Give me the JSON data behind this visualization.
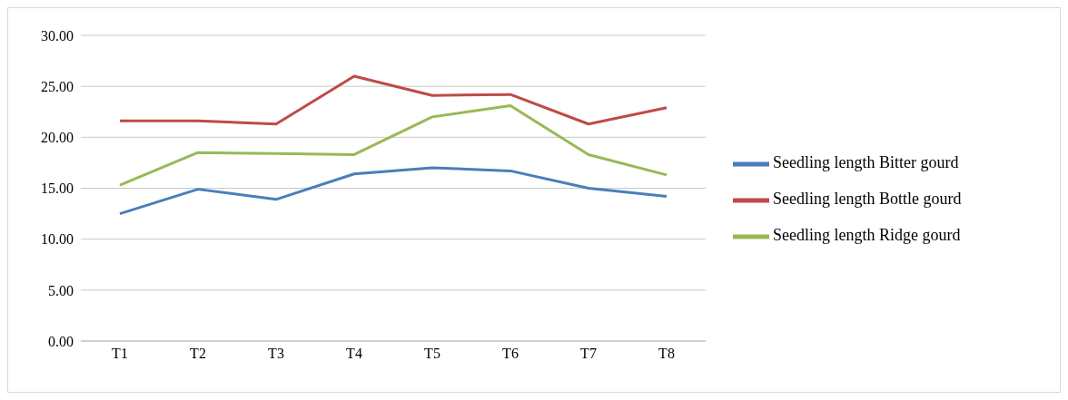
{
  "chart_data": {
    "type": "line",
    "categories": [
      "T1",
      "T2",
      "T3",
      "T4",
      "T5",
      "T6",
      "T7",
      "T8"
    ],
    "series": [
      {
        "name": "Seedling length Bitter gourd",
        "color": "#4a7ebb",
        "values": [
          12.5,
          14.9,
          13.9,
          16.4,
          17.0,
          16.7,
          15.0,
          14.2
        ]
      },
      {
        "name": "Seedling length Bottle gourd",
        "color": "#be4b48",
        "values": [
          21.6,
          21.6,
          21.3,
          26.0,
          24.1,
          24.2,
          21.3,
          22.9
        ]
      },
      {
        "name": "Seedling length Ridge gourd",
        "color": "#98b954",
        "values": [
          15.3,
          18.5,
          18.4,
          18.3,
          22.0,
          23.1,
          18.3,
          16.3
        ]
      }
    ],
    "ylim": [
      0,
      30
    ],
    "yticks": [
      {
        "value": 0,
        "label": "0.00"
      },
      {
        "value": 5,
        "label": "5.00"
      },
      {
        "value": 10,
        "label": "10.00"
      },
      {
        "value": 15,
        "label": "15.00"
      },
      {
        "value": 20,
        "label": "20.00"
      },
      {
        "value": 25,
        "label": "25.00"
      },
      {
        "value": 30,
        "label": "30.00"
      }
    ],
    "grid": "y",
    "legend": "right",
    "marker": "none",
    "line_style": "solid"
  }
}
